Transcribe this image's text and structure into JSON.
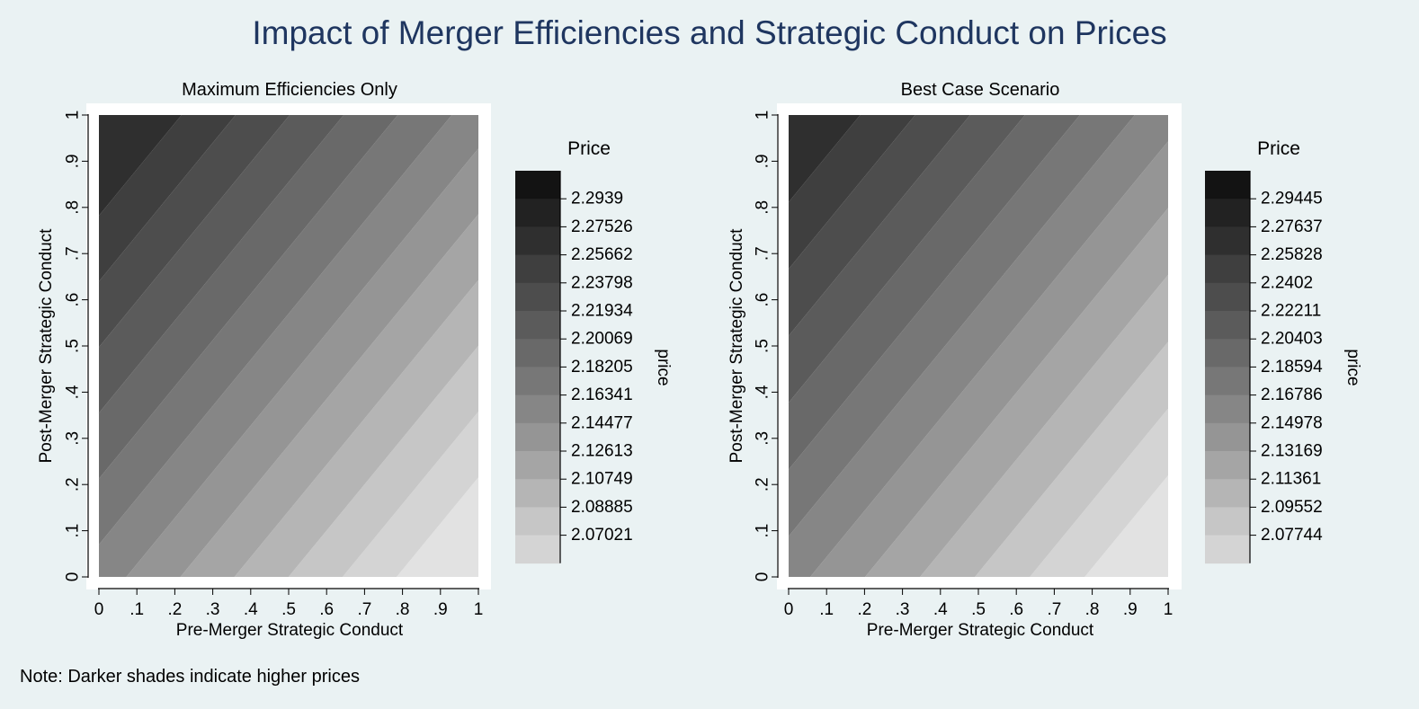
{
  "title": "Impact of Merger Efficiencies and Strategic Conduct on Prices",
  "note": "Note: Darker shades indicate higher prices",
  "colors": {
    "background": "#eaf2f3",
    "title": "#1f3660",
    "plot_region": "#ffffff",
    "shades": [
      "#e2e2e2",
      "#d4d4d4",
      "#c6c6c6",
      "#b5b5b5",
      "#a5a5a5",
      "#959595",
      "#868686",
      "#777777",
      "#696969",
      "#5b5b5b",
      "#4d4d4d",
      "#3f3f3f",
      "#2f2f2f",
      "#222222",
      "#131313"
    ]
  },
  "chart_data": [
    {
      "type": "heatmap",
      "subtitle": "Maximum Efficiencies Only",
      "xlabel": "Pre-Merger Strategic Conduct",
      "ylabel": "Post-Merger Strategic Conduct",
      "x_ticks": [
        "0",
        ".1",
        ".2",
        ".3",
        ".4",
        ".5",
        ".6",
        ".7",
        ".8",
        ".9",
        "1"
      ],
      "y_ticks": [
        "0",
        ".1",
        ".2",
        ".3",
        ".4",
        ".5",
        ".6",
        ".7",
        ".8",
        ".9",
        "1"
      ],
      "xlim": [
        0,
        1
      ],
      "ylim": [
        0,
        1
      ],
      "z_title": "Price",
      "z_label": "price",
      "contour_levels": [
        "2.2939",
        "2.27526",
        "2.25662",
        "2.23798",
        "2.21934",
        "2.20069",
        "2.18205",
        "2.16341",
        "2.14477",
        "2.12613",
        "2.10749",
        "2.08885",
        "2.07021"
      ],
      "z_min": 2.05157,
      "z_max": 2.31254,
      "surface": {
        "z00": 2.1822,
        "dz_dx": -0.1309,
        "dz_dy": 0.1309
      }
    },
    {
      "type": "heatmap",
      "subtitle": "Best Case Scenario",
      "xlabel": "Pre-Merger Strategic Conduct",
      "ylabel": "Post-Merger Strategic Conduct",
      "x_ticks": [
        "0",
        ".1",
        ".2",
        ".3",
        ".4",
        ".5",
        ".6",
        ".7",
        ".8",
        ".9",
        "1"
      ],
      "y_ticks": [
        "0",
        ".1",
        ".2",
        ".3",
        ".4",
        ".5",
        ".6",
        ".7",
        ".8",
        ".9",
        "1"
      ],
      "xlim": [
        0,
        1
      ],
      "ylim": [
        0,
        1
      ],
      "z_title": "Price",
      "z_label": "price",
      "contour_levels": [
        "2.29445",
        "2.27637",
        "2.25828",
        "2.2402",
        "2.22211",
        "2.20403",
        "2.18594",
        "2.16786",
        "2.14978",
        "2.13169",
        "2.11361",
        "2.09552",
        "2.07744"
      ],
      "z_min": 2.05935,
      "z_max": 2.31254,
      "surface": {
        "z00": 2.184,
        "dz_dx": -0.125,
        "dz_dy": 0.125
      }
    }
  ]
}
